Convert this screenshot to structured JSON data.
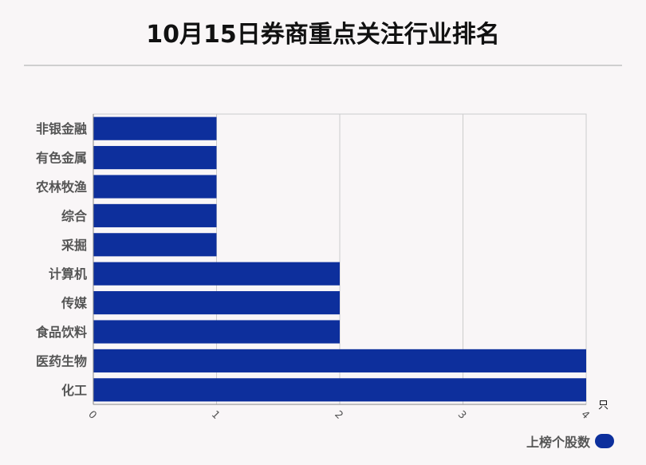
{
  "title": "10月15日券商重点关注行业排名",
  "chart_data": {
    "type": "bar",
    "orientation": "horizontal",
    "categories": [
      "非银金融",
      "有色金属",
      "农林牧渔",
      "综合",
      "采掘",
      "计算机",
      "传媒",
      "食品饮料",
      "医药生物",
      "化工"
    ],
    "series": [
      {
        "name": "上榜个股数",
        "values": [
          1,
          1,
          1,
          1,
          1,
          2,
          2,
          2,
          4,
          4
        ],
        "color": "#0d2f9c"
      }
    ],
    "x_ticks": [
      "0",
      "1",
      "2",
      "3",
      "4"
    ],
    "xlim": [
      0,
      4
    ],
    "x_unit": "只",
    "grid": true,
    "legend": "bottom-right"
  }
}
